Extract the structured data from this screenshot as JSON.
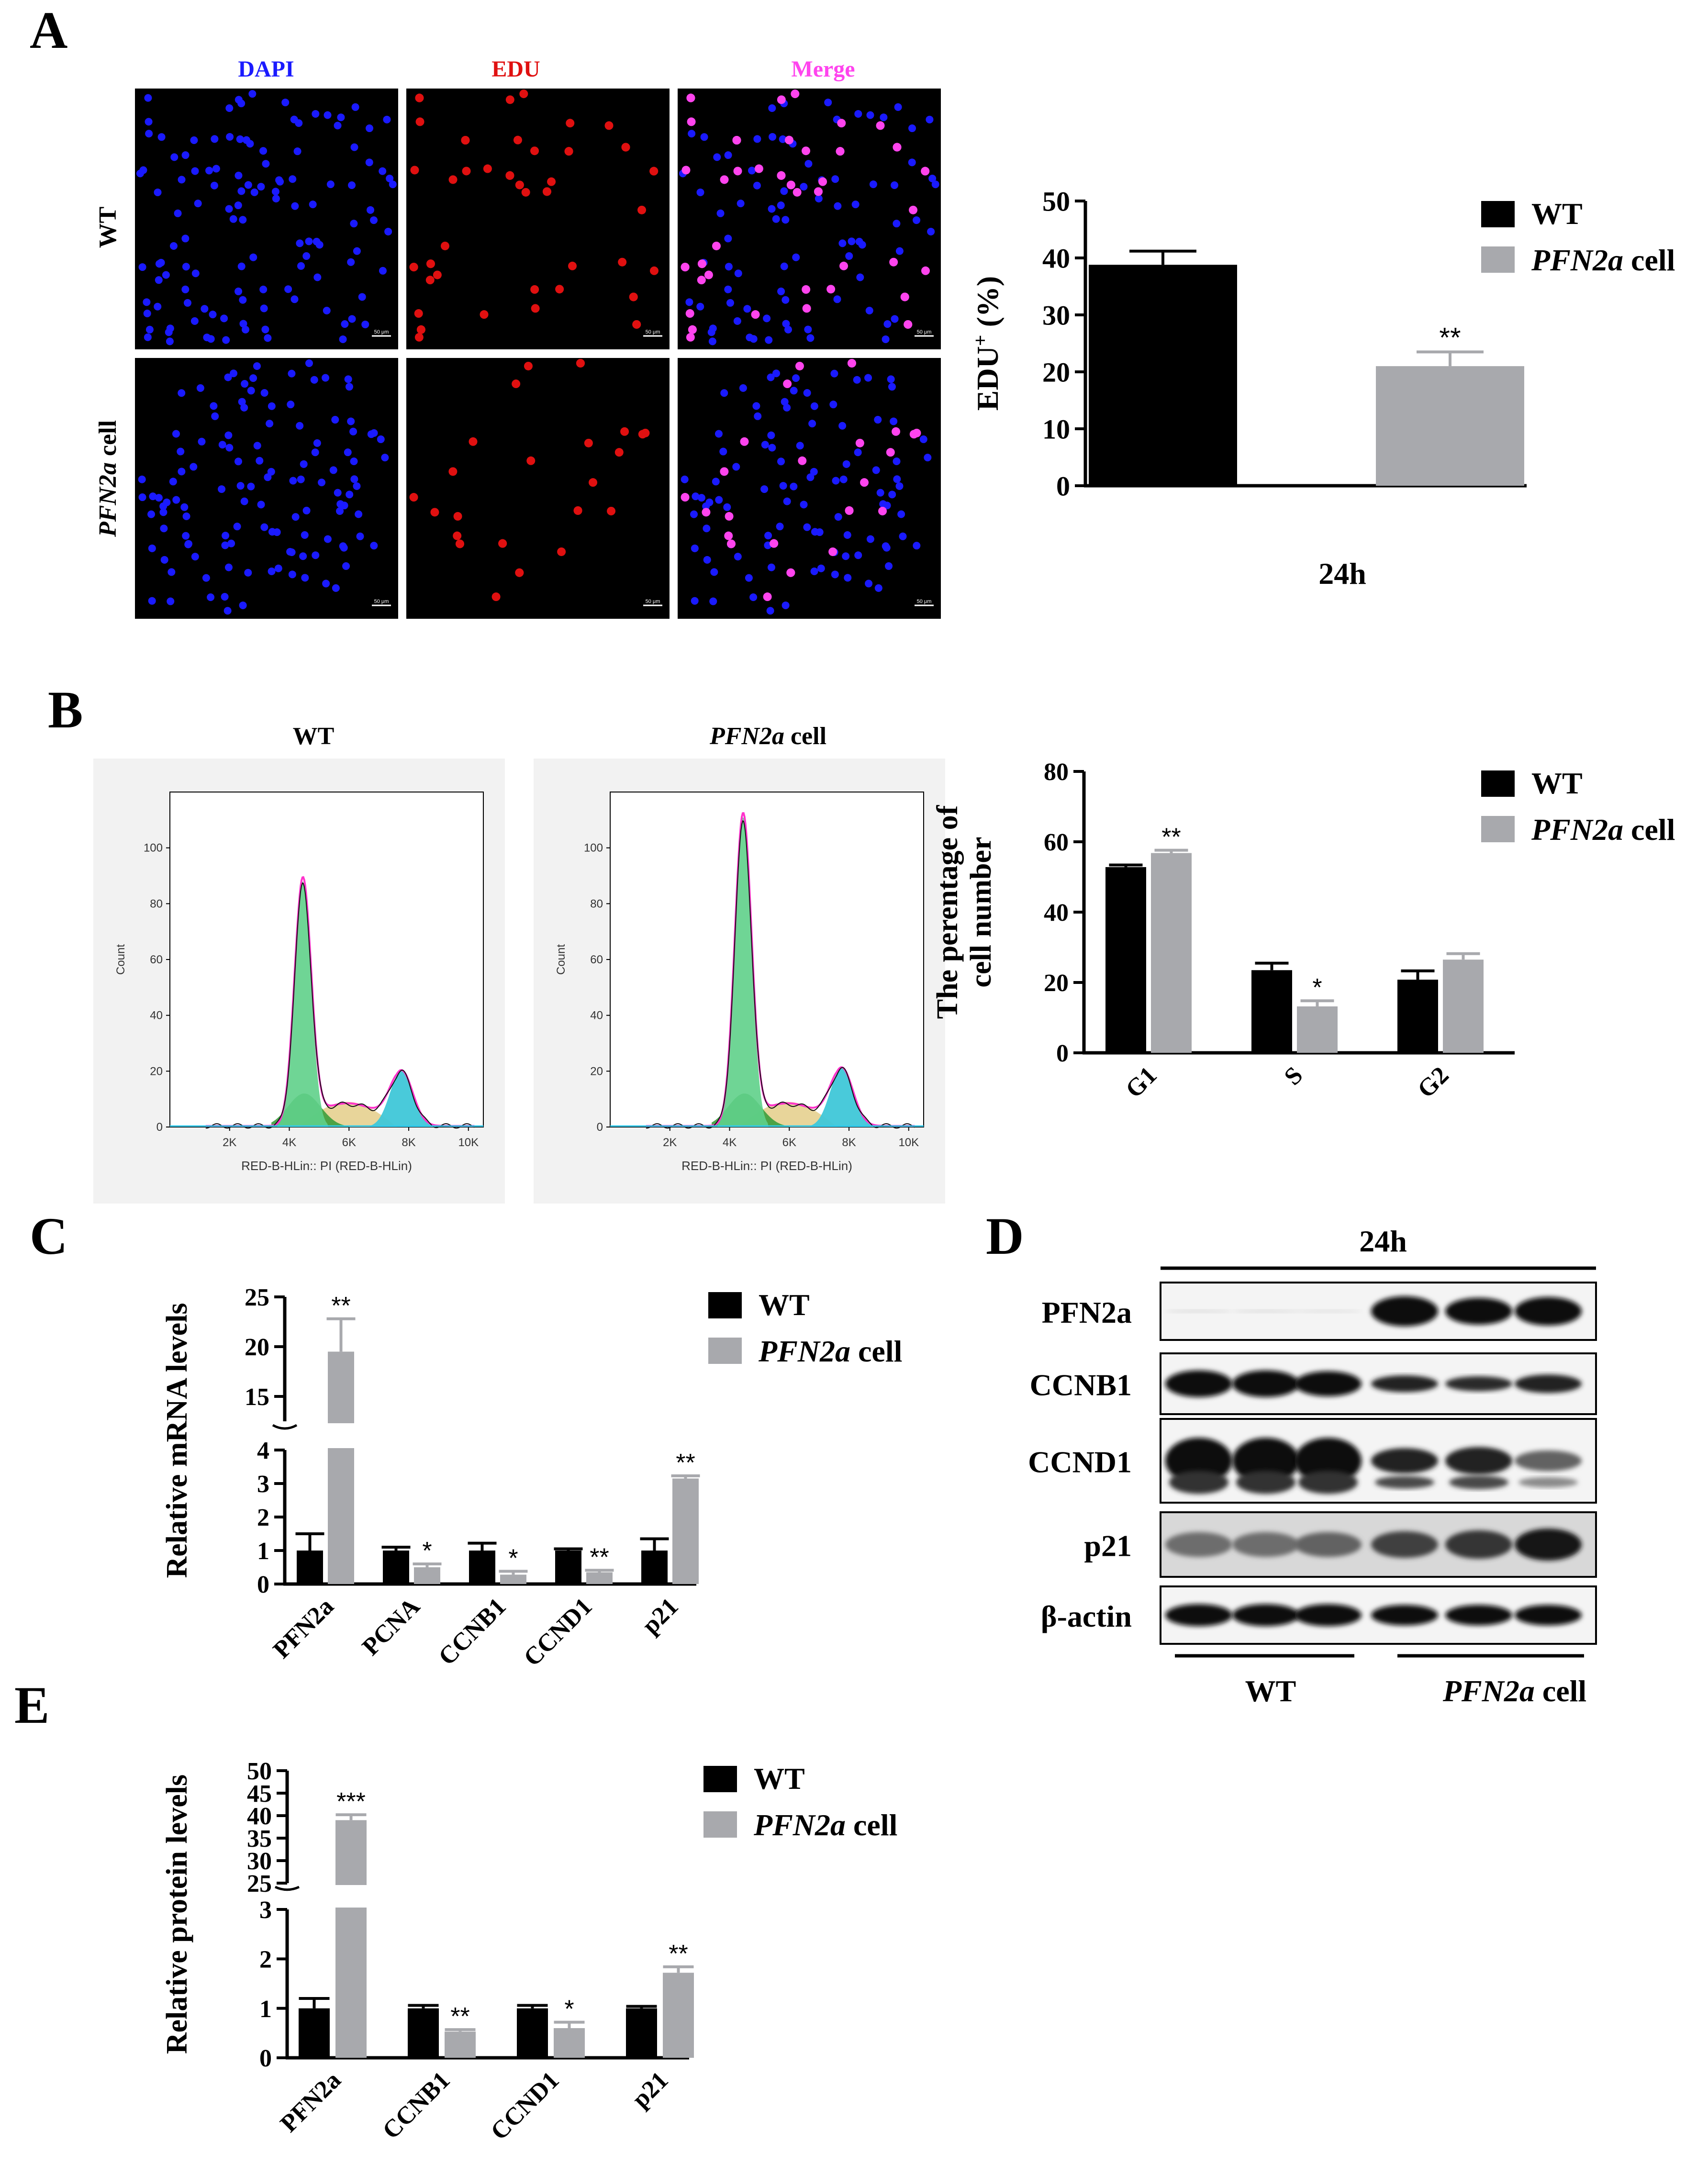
{
  "colors": {
    "wt": "#000000",
    "pfn": "#a8a9ad",
    "dapi": "#1a1aff",
    "edu": "#e01010",
    "merge": "#ff44ee"
  },
  "panel_labels": {
    "a": "A",
    "b": "B",
    "c": "C",
    "d": "D",
    "e": "E"
  },
  "legend": {
    "wt": "WT",
    "pfn_gene": "PFN2a",
    "pfn_suffix": " cell"
  },
  "panelA": {
    "col_dapi": "DAPI",
    "col_edu": "EDU",
    "col_merge": "Merge",
    "row_wt": "WT",
    "row_pfn_gene": "PFN2a",
    "row_pfn_suffix": " cell",
    "scale": "50 μm"
  },
  "panelB": {
    "wt_title": "WT",
    "pfn_title_gene": "PFN2a",
    "pfn_title_suffix": " cell",
    "hist_ylabel": "Count",
    "hist_xlabel": "RED-B-HLin:: PI (RED-B-HLin)",
    "hist_yticks": [
      "0",
      "20",
      "40",
      "60",
      "80",
      "100"
    ],
    "hist_xticks": [
      "2K",
      "4K",
      "6K",
      "8K",
      "10K"
    ]
  },
  "panelD": {
    "time": "24h",
    "rows": [
      "PFN2a",
      "CCNB1",
      "CCND1",
      "p21",
      "β-actin"
    ],
    "group_wt": "WT",
    "group_pfn_gene": "PFN2a",
    "group_pfn_suffix": " cell"
  },
  "chart_data": [
    {
      "id": "A",
      "type": "bar",
      "title": "",
      "xlabel": "24h",
      "ylabel": "EDU+ (%)",
      "ylabel_main": "EDU",
      "ylabel_sup": "+",
      "ylabel_tail": " (%)",
      "ylim": [
        0,
        50
      ],
      "yticks": [
        "0",
        "10",
        "20",
        "30",
        "40",
        "50"
      ],
      "categories": [
        ""
      ],
      "series": [
        {
          "name": "WT",
          "values": [
            38.8
          ],
          "errors": [
            2.4
          ],
          "sig": [
            ""
          ]
        },
        {
          "name": "PFN2a cell",
          "values": [
            21.0
          ],
          "errors": [
            2.5
          ],
          "sig": [
            "**"
          ]
        }
      ]
    },
    {
      "id": "B",
      "type": "bar",
      "title": "",
      "ylabel_lines": [
        "The perentage of",
        "cell number"
      ],
      "ylim": [
        0,
        80
      ],
      "yticks": [
        "0",
        "20",
        "40",
        "60",
        "80"
      ],
      "categories": [
        "G1",
        "S",
        "G2"
      ],
      "series": [
        {
          "name": "WT",
          "values": [
            52.8,
            23.5,
            20.8
          ],
          "errors": [
            0.6,
            2.0,
            2.5
          ],
          "sig": [
            "",
            "",
            ""
          ]
        },
        {
          "name": "PFN2a cell",
          "values": [
            56.8,
            13.2,
            26.5
          ],
          "errors": [
            0.8,
            1.6,
            1.7
          ],
          "sig": [
            "**",
            "*",
            ""
          ]
        }
      ]
    },
    {
      "id": "C",
      "type": "bar",
      "title": "",
      "ylabel": "Relative mRNA levels",
      "broken_axis": {
        "lower": [
          0,
          4
        ],
        "upper": [
          12.5,
          25
        ]
      },
      "yticks_lower": [
        "0",
        "1",
        "2",
        "3",
        "4"
      ],
      "yticks_upper": [
        "15",
        "20",
        "25"
      ],
      "categories": [
        "PFN2a",
        "PCNA",
        "CCNB1",
        "CCND1",
        "p21"
      ],
      "series": [
        {
          "name": "WT",
          "values": [
            1.0,
            1.0,
            1.0,
            1.0,
            1.0
          ],
          "errors": [
            0.5,
            0.1,
            0.22,
            0.05,
            0.35
          ],
          "sig": [
            "",
            "",
            "",
            "",
            ""
          ]
        },
        {
          "name": "PFN2a cell",
          "values": [
            19.5,
            0.5,
            0.28,
            0.35,
            3.15
          ],
          "errors": [
            3.3,
            0.1,
            0.1,
            0.06,
            0.08
          ],
          "sig": [
            "**",
            "*",
            "*",
            "**",
            "**"
          ]
        }
      ]
    },
    {
      "id": "E",
      "type": "bar",
      "title": "",
      "ylabel": "Relative protein levels",
      "broken_axis": {
        "lower": [
          0,
          3
        ],
        "upper": [
          25,
          50
        ]
      },
      "yticks_lower": [
        "0",
        "1",
        "2",
        "3"
      ],
      "yticks_upper": [
        "25",
        "30",
        "35",
        "40",
        "45",
        "50"
      ],
      "categories": [
        "PFN2a",
        "CCNB1",
        "CCND1",
        "p21"
      ],
      "series": [
        {
          "name": "WT",
          "values": [
            1.0,
            1.0,
            1.0,
            1.0
          ],
          "errors": [
            0.2,
            0.06,
            0.06,
            0.04
          ],
          "sig": [
            "",
            "",
            "",
            ""
          ]
        },
        {
          "name": "PFN2a cell",
          "values": [
            39.0,
            0.53,
            0.6,
            1.72
          ],
          "errors": [
            1.2,
            0.04,
            0.12,
            0.12
          ],
          "sig": [
            "***",
            "**",
            "*",
            "**"
          ]
        }
      ]
    }
  ]
}
